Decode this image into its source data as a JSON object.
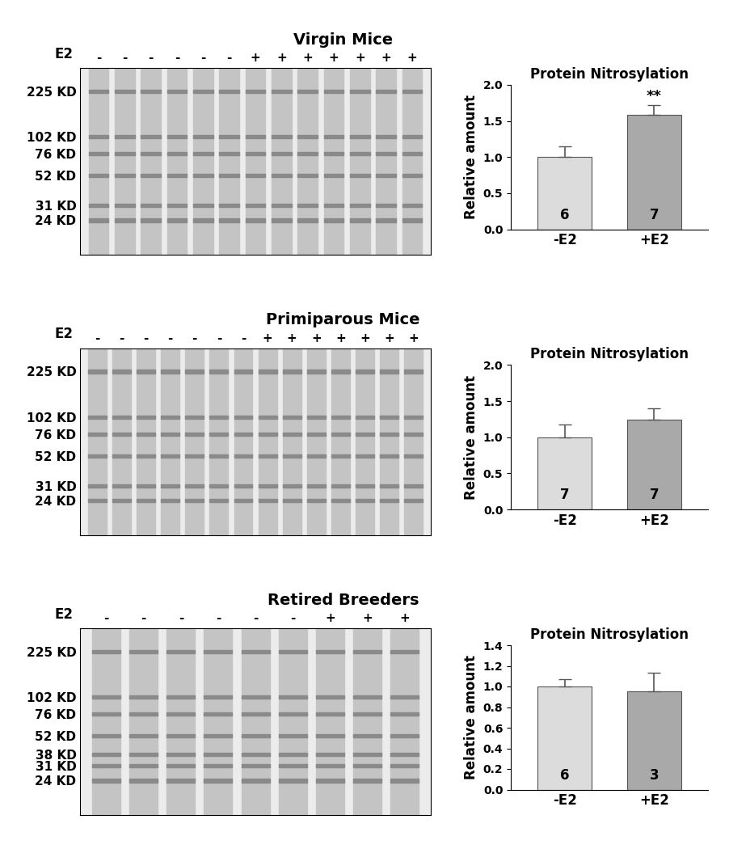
{
  "chart_data": [
    {
      "type": "bar",
      "title": "Protein Nitrosylation",
      "ylabel": "Relative amount",
      "categories": [
        "-E2",
        "+E2"
      ],
      "values": [
        1.0,
        1.59
      ],
      "errors": [
        0.15,
        0.13
      ],
      "n": [
        6,
        7
      ],
      "significance": [
        null,
        "**"
      ],
      "colors": [
        "#dcdcdc",
        "#a9a9a9"
      ],
      "ylim": [
        0,
        2.0
      ],
      "yticks": [
        {
          "value": 0,
          "label": "0.0"
        },
        {
          "value": 0.5,
          "label": "0.5"
        },
        {
          "value": 1.0,
          "label": "1.0"
        },
        {
          "value": 1.5,
          "label": "1.5"
        },
        {
          "value": 2.0,
          "label": "2.0"
        }
      ]
    },
    {
      "type": "bar",
      "title": "Protein Nitrosylation",
      "ylabel": "Relative amount",
      "categories": [
        "-E2",
        "+E2"
      ],
      "values": [
        1.0,
        1.24
      ],
      "errors": [
        0.18,
        0.16
      ],
      "n": [
        7,
        7
      ],
      "significance": [
        null,
        null
      ],
      "colors": [
        "#dcdcdc",
        "#a9a9a9"
      ],
      "ylim": [
        0,
        2.0
      ],
      "yticks": [
        {
          "value": 0,
          "label": "0.0"
        },
        {
          "value": 0.5,
          "label": "0.5"
        },
        {
          "value": 1.0,
          "label": "1.0"
        },
        {
          "value": 1.5,
          "label": "1.5"
        },
        {
          "value": 2.0,
          "label": "2.0"
        }
      ]
    },
    {
      "type": "bar",
      "title": "Protein Nitrosylation",
      "ylabel": "Relative amount",
      "categories": [
        "-E2",
        "+E2"
      ],
      "values": [
        1.0,
        0.95
      ],
      "errors": [
        0.07,
        0.18
      ],
      "n": [
        6,
        3
      ],
      "significance": [
        null,
        null
      ],
      "colors": [
        "#dcdcdc",
        "#a9a9a9"
      ],
      "ylim": [
        0,
        1.4
      ],
      "yticks": [
        {
          "value": 0,
          "label": "0.0"
        },
        {
          "value": 0.2,
          "label": "0.2"
        },
        {
          "value": 0.4,
          "label": "0.4"
        },
        {
          "value": 0.6,
          "label": "0.6"
        },
        {
          "value": 0.8,
          "label": "0.8"
        },
        {
          "value": 1.0,
          "label": "1.0"
        },
        {
          "value": 1.2,
          "label": "1.2"
        },
        {
          "value": 1.4,
          "label": "1.4"
        }
      ]
    }
  ],
  "blots": [
    {
      "title": "Virgin Mice",
      "lane_label": "E2",
      "lanes": [
        "-",
        "-",
        "-",
        "-",
        "-",
        "-",
        "+",
        "+",
        "+",
        "+",
        "+",
        "+",
        "+"
      ],
      "markers": [
        {
          "value": 225,
          "label": "225 KD"
        },
        {
          "value": 102,
          "label": "102 KD"
        },
        {
          "value": 76,
          "label": "76 KD"
        },
        {
          "value": 52,
          "label": "52 KD"
        },
        {
          "value": 31,
          "label": "31 KD"
        },
        {
          "value": 24,
          "label": "24 KD"
        }
      ]
    },
    {
      "title": "Primiparous Mice",
      "lane_label": "E2",
      "lanes": [
        "-",
        "-",
        "-",
        "-",
        "-",
        "-",
        "-",
        "+",
        "+",
        "+",
        "+",
        "+",
        "+",
        "+"
      ],
      "markers": [
        {
          "value": 225,
          "label": "225 KD"
        },
        {
          "value": 102,
          "label": "102 KD"
        },
        {
          "value": 76,
          "label": "76 KD"
        },
        {
          "value": 52,
          "label": "52 KD"
        },
        {
          "value": 31,
          "label": "31 KD"
        },
        {
          "value": 24,
          "label": "24 KD"
        }
      ]
    },
    {
      "title": "Retired Breeders",
      "lane_label": "E2",
      "lanes": [
        "-",
        "-",
        "-",
        "-",
        "-",
        "-",
        "+",
        "+",
        "+"
      ],
      "markers": [
        {
          "value": 225,
          "label": "225 KD"
        },
        {
          "value": 102,
          "label": "102 KD"
        },
        {
          "value": 76,
          "label": "76 KD"
        },
        {
          "value": 52,
          "label": "52 KD"
        },
        {
          "value": 38,
          "label": "38 KD"
        },
        {
          "value": 31,
          "label": "31 KD"
        },
        {
          "value": 24,
          "label": "24 KD"
        }
      ]
    }
  ]
}
